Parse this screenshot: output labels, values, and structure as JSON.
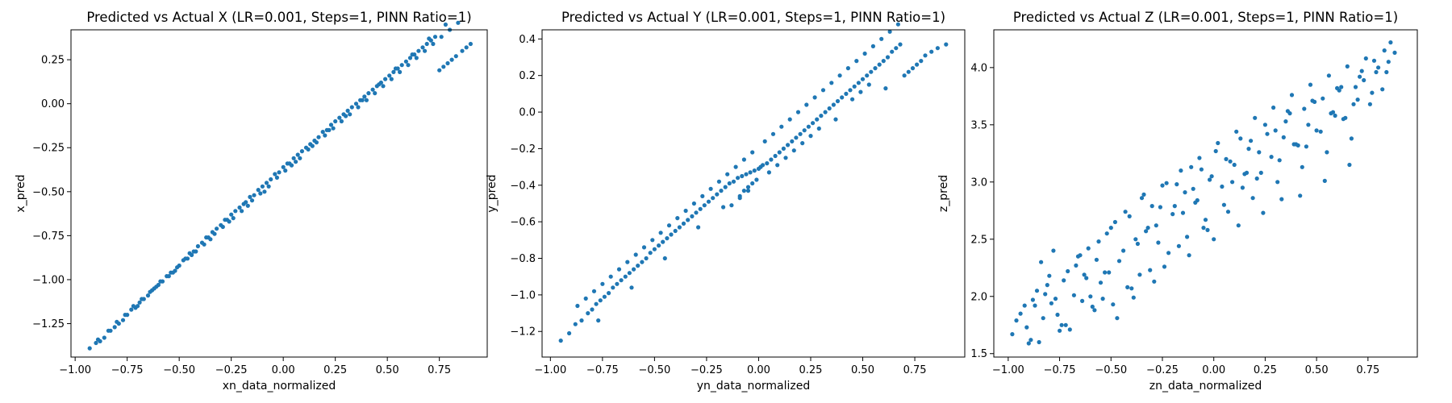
{
  "chart_data": [
    {
      "type": "scatter",
      "title": "Predicted vs Actual X (LR=0.001, Steps=1, PINN Ratio=1)",
      "xlabel": "xn_data_normalized",
      "ylabel": "x_pred",
      "xlim": [
        -1.02,
        0.98
      ],
      "ylim": [
        -1.44,
        0.42
      ],
      "xticks": [
        -1.0,
        -0.75,
        -0.5,
        -0.25,
        0.0,
        0.25,
        0.5,
        0.75
      ],
      "xtick_labels": [
        "−1.00",
        "−0.75",
        "−0.50",
        "−0.25",
        "0.00",
        "0.25",
        "0.50",
        "0.75"
      ],
      "yticks": [
        -1.25,
        -1.0,
        -0.75,
        -0.5,
        -0.25,
        0.0,
        0.25
      ],
      "ytick_labels": [
        "−1.25",
        "−1.00",
        "−0.75",
        "−0.50",
        "−0.25",
        "0.00",
        "0.25"
      ],
      "grid": false,
      "color": "#1f77b4",
      "x": [
        -0.93,
        -0.9,
        -0.88,
        -0.86,
        -0.83,
        -0.81,
        -0.79,
        -0.77,
        -0.75,
        -0.73,
        -0.71,
        -0.69,
        -0.67,
        -0.65,
        -0.63,
        -0.61,
        -0.6,
        -0.58,
        -0.56,
        -0.54,
        -0.52,
        -0.5,
        -0.48,
        -0.47,
        -0.45,
        -0.43,
        -0.41,
        -0.39,
        -0.37,
        -0.36,
        -0.34,
        -0.32,
        -0.3,
        -0.28,
        -0.27,
        -0.25,
        -0.23,
        -0.21,
        -0.19,
        -0.18,
        -0.16,
        -0.14,
        -0.12,
        -0.1,
        -0.08,
        -0.06,
        -0.04,
        -0.02,
        0.0,
        0.02,
        0.03,
        0.05,
        0.07,
        0.09,
        0.11,
        0.13,
        0.15,
        0.17,
        0.19,
        0.21,
        0.23,
        0.25,
        0.27,
        0.29,
        0.31,
        0.33,
        0.35,
        0.37,
        0.39,
        0.41,
        0.43,
        0.45,
        0.47,
        0.49,
        0.51,
        0.53,
        0.55,
        0.57,
        0.59,
        0.61,
        0.63,
        0.65,
        0.67,
        0.69,
        0.71,
        0.73,
        0.75,
        0.77,
        0.79,
        0.81,
        0.83,
        0.86,
        0.88,
        0.9,
        -0.89,
        -0.84,
        -0.8,
        -0.76,
        -0.72,
        -0.68,
        -0.64,
        -0.59,
        -0.55,
        -0.51,
        -0.46,
        -0.42,
        -0.38,
        -0.33,
        -0.29,
        -0.24,
        -0.2,
        -0.15,
        -0.11,
        -0.07,
        -0.03,
        0.01,
        0.04,
        0.08,
        0.12,
        0.16,
        0.2,
        0.24,
        0.28,
        0.32,
        0.36,
        0.4,
        0.44,
        0.48,
        0.52,
        0.56,
        0.6,
        0.64,
        0.68,
        0.72,
        0.76,
        0.8,
        0.84,
        -0.7,
        -0.62,
        -0.53,
        -0.44,
        -0.35,
        -0.26,
        -0.17,
        -0.09,
        0.06,
        0.14,
        0.22,
        0.3,
        0.38,
        0.46,
        0.54,
        0.62,
        0.7,
        0.78
      ],
      "y": [
        -1.39,
        -1.36,
        -1.35,
        -1.33,
        -1.29,
        -1.27,
        -1.25,
        -1.23,
        -1.2,
        -1.17,
        -1.16,
        -1.13,
        -1.11,
        -1.09,
        -1.06,
        -1.04,
        -1.03,
        -1.01,
        -0.98,
        -0.96,
        -0.95,
        -0.92,
        -0.89,
        -0.88,
        -0.85,
        -0.84,
        -0.81,
        -0.79,
        -0.76,
        -0.76,
        -0.73,
        -0.71,
        -0.69,
        -0.66,
        -0.66,
        -0.63,
        -0.61,
        -0.59,
        -0.57,
        -0.56,
        -0.53,
        -0.52,
        -0.49,
        -0.47,
        -0.45,
        -0.43,
        -0.4,
        -0.39,
        -0.36,
        -0.34,
        -0.34,
        -0.31,
        -0.29,
        -0.27,
        -0.25,
        -0.23,
        -0.21,
        -0.19,
        -0.16,
        -0.15,
        -0.12,
        -0.1,
        -0.08,
        -0.06,
        -0.04,
        -0.02,
        0.0,
        0.02,
        0.04,
        0.06,
        0.08,
        0.1,
        0.12,
        0.14,
        0.16,
        0.18,
        0.2,
        0.22,
        0.24,
        0.26,
        0.28,
        0.3,
        0.32,
        0.34,
        0.36,
        0.38,
        0.19,
        0.21,
        0.23,
        0.25,
        0.27,
        0.3,
        0.32,
        0.34,
        -1.34,
        -1.29,
        -1.24,
        -1.2,
        -1.15,
        -1.11,
        -1.07,
        -1.01,
        -0.98,
        -0.93,
        -0.88,
        -0.84,
        -0.8,
        -0.74,
        -0.7,
        -0.65,
        -0.61,
        -0.55,
        -0.51,
        -0.47,
        -0.42,
        -0.38,
        -0.35,
        -0.31,
        -0.26,
        -0.22,
        -0.18,
        -0.14,
        -0.1,
        -0.06,
        -0.02,
        0.02,
        0.06,
        0.1,
        0.14,
        0.18,
        0.22,
        0.26,
        0.3,
        0.34,
        0.38,
        0.42,
        0.46,
        -1.15,
        -1.05,
        -0.96,
        -0.86,
        -0.77,
        -0.67,
        -0.58,
        -0.5,
        -0.33,
        -0.24,
        -0.15,
        -0.07,
        0.02,
        0.11,
        0.2,
        0.28,
        0.37,
        0.45
      ]
    },
    {
      "type": "scatter",
      "title": "Predicted vs Actual Y (LR=0.001, Steps=1, PINN Ratio=1)",
      "xlabel": "yn_data_normalized",
      "ylabel": "y_pred",
      "xlim": [
        -1.04,
        0.99
      ],
      "ylim": [
        -1.34,
        0.45
      ],
      "xticks": [
        -1.0,
        -0.75,
        -0.5,
        -0.25,
        0.0,
        0.25,
        0.5,
        0.75
      ],
      "xtick_labels": [
        "−1.00",
        "−0.75",
        "−0.50",
        "−0.25",
        "0.00",
        "0.25",
        "0.50",
        "0.75"
      ],
      "yticks": [
        -1.2,
        -1.0,
        -0.8,
        -0.6,
        -0.4,
        -0.2,
        0.0,
        0.2,
        0.4
      ],
      "ytick_labels": [
        "−1.2",
        "−1.0",
        "−0.8",
        "−0.6",
        "−0.4",
        "−0.2",
        "0.0",
        "0.2",
        "0.4"
      ],
      "grid": false,
      "color": "#1f77b4",
      "x": [
        -0.95,
        -0.91,
        -0.88,
        -0.85,
        -0.82,
        -0.8,
        -0.78,
        -0.76,
        -0.74,
        -0.72,
        -0.7,
        -0.68,
        -0.66,
        -0.64,
        -0.62,
        -0.6,
        -0.58,
        -0.56,
        -0.54,
        -0.52,
        -0.5,
        -0.48,
        -0.46,
        -0.44,
        -0.42,
        -0.4,
        -0.38,
        -0.36,
        -0.34,
        -0.32,
        -0.3,
        -0.28,
        -0.26,
        -0.24,
        -0.22,
        -0.2,
        -0.18,
        -0.16,
        -0.14,
        -0.12,
        -0.1,
        -0.09,
        -0.08,
        -0.07,
        -0.06,
        -0.05,
        -0.04,
        -0.03,
        -0.02,
        -0.01,
        0.0,
        0.01,
        0.02,
        0.04,
        0.06,
        0.08,
        0.1,
        0.12,
        0.14,
        0.16,
        0.18,
        0.2,
        0.22,
        0.24,
        0.26,
        0.28,
        0.3,
        0.32,
        0.34,
        0.36,
        0.38,
        0.4,
        0.42,
        0.44,
        0.46,
        0.48,
        0.5,
        0.52,
        0.54,
        0.56,
        0.58,
        0.6,
        0.62,
        0.64,
        0.66,
        0.68,
        0.7,
        0.72,
        0.74,
        0.76,
        0.78,
        0.8,
        0.83,
        0.86,
        0.9,
        -0.87,
        -0.83,
        -0.79,
        -0.75,
        -0.71,
        -0.67,
        -0.63,
        -0.59,
        -0.55,
        -0.51,
        -0.47,
        -0.43,
        -0.39,
        -0.35,
        -0.31,
        -0.27,
        -0.23,
        -0.19,
        -0.15,
        -0.11,
        -0.07,
        -0.03,
        0.03,
        0.07,
        0.11,
        0.15,
        0.19,
        0.23,
        0.27,
        0.31,
        0.35,
        0.39,
        0.43,
        0.47,
        0.51,
        0.55,
        0.59,
        0.63,
        0.67,
        -0.13,
        -0.09,
        -0.05,
        0.05,
        0.09,
        0.13,
        0.17,
        0.21,
        0.25,
        0.29,
        0.45,
        0.49,
        0.53,
        -0.77,
        -0.61,
        -0.45,
        -0.29,
        -0.17,
        0.37,
        0.61
      ],
      "y": [
        -1.25,
        -1.21,
        -1.16,
        -1.14,
        -1.1,
        -1.08,
        -1.05,
        -1.03,
        -1.01,
        -0.99,
        -0.96,
        -0.94,
        -0.92,
        -0.9,
        -0.88,
        -0.86,
        -0.84,
        -0.82,
        -0.8,
        -0.77,
        -0.75,
        -0.73,
        -0.71,
        -0.69,
        -0.67,
        -0.65,
        -0.63,
        -0.61,
        -0.59,
        -0.57,
        -0.55,
        -0.53,
        -0.51,
        -0.49,
        -0.47,
        -0.45,
        -0.43,
        -0.41,
        -0.39,
        -0.38,
        -0.36,
        -0.46,
        -0.35,
        -0.43,
        -0.34,
        -0.41,
        -0.33,
        -0.39,
        -0.32,
        -0.37,
        -0.31,
        -0.3,
        -0.29,
        -0.28,
        -0.26,
        -0.24,
        -0.22,
        -0.2,
        -0.18,
        -0.16,
        -0.14,
        -0.12,
        -0.1,
        -0.08,
        -0.06,
        -0.04,
        -0.02,
        0.0,
        0.02,
        0.04,
        0.06,
        0.08,
        0.1,
        0.12,
        0.14,
        0.16,
        0.18,
        0.2,
        0.22,
        0.24,
        0.26,
        0.28,
        0.3,
        0.33,
        0.35,
        0.37,
        0.2,
        0.22,
        0.24,
        0.26,
        0.28,
        0.31,
        0.33,
        0.35,
        0.37,
        -1.06,
        -1.02,
        -0.98,
        -0.94,
        -0.9,
        -0.86,
        -0.82,
        -0.78,
        -0.74,
        -0.7,
        -0.66,
        -0.62,
        -0.58,
        -0.54,
        -0.5,
        -0.46,
        -0.42,
        -0.38,
        -0.34,
        -0.3,
        -0.26,
        -0.22,
        -0.16,
        -0.12,
        -0.08,
        -0.04,
        0.0,
        0.04,
        0.08,
        0.12,
        0.16,
        0.2,
        0.24,
        0.28,
        0.32,
        0.36,
        0.4,
        0.44,
        0.48,
        -0.51,
        -0.47,
        -0.43,
        -0.33,
        -0.29,
        -0.25,
        -0.21,
        -0.17,
        -0.13,
        -0.09,
        0.07,
        0.11,
        0.15,
        -1.14,
        -0.96,
        -0.8,
        -0.63,
        -0.52,
        -0.04,
        0.13
      ]
    },
    {
      "type": "scatter",
      "title": "Predicted vs Actual Z (LR=0.001, Steps=1, PINN Ratio=1)",
      "xlabel": "zn_data_normalized",
      "ylabel": "z_pred",
      "xlim": [
        -1.07,
        0.99
      ],
      "ylim": [
        1.47,
        4.33
      ],
      "xticks": [
        -1.0,
        -0.75,
        -0.5,
        -0.25,
        0.0,
        0.25,
        0.5,
        0.75
      ],
      "xtick_labels": [
        "−1.00",
        "−0.75",
        "−0.50",
        "−0.25",
        "0.00",
        "0.25",
        "0.50",
        "0.75"
      ],
      "yticks": [
        1.5,
        2.0,
        2.5,
        3.0,
        3.5,
        4.0
      ],
      "ytick_labels": [
        "1.5",
        "2.0",
        "2.5",
        "3.0",
        "3.5",
        "4.0"
      ],
      "grid": false,
      "color": "#1f77b4",
      "x": [
        -0.98,
        -0.94,
        -0.91,
        -0.88,
        -0.85,
        -0.82,
        -0.79,
        -0.76,
        -0.73,
        -0.7,
        -0.67,
        -0.64,
        -0.61,
        -0.58,
        -0.55,
        -0.52,
        -0.49,
        -0.46,
        -0.43,
        -0.4,
        -0.37,
        -0.34,
        -0.31,
        -0.28,
        -0.25,
        -0.22,
        -0.19,
        -0.16,
        -0.13,
        -0.1,
        -0.07,
        -0.04,
        -0.01,
        0.02,
        0.05,
        0.08,
        0.11,
        0.14,
        0.17,
        0.2,
        0.23,
        0.26,
        0.29,
        0.32,
        0.35,
        0.38,
        0.41,
        0.44,
        0.47,
        0.5,
        0.53,
        0.56,
        0.59,
        0.62,
        0.65,
        0.68,
        0.71,
        0.74,
        0.77,
        0.8,
        0.83,
        0.86,
        -0.96,
        -0.92,
        -0.89,
        -0.86,
        -0.83,
        -0.8,
        -0.77,
        -0.74,
        -0.71,
        -0.68,
        -0.65,
        -0.62,
        -0.59,
        -0.56,
        -0.53,
        -0.5,
        -0.47,
        -0.44,
        -0.41,
        -0.38,
        -0.35,
        -0.32,
        -0.29,
        -0.26,
        -0.23,
        -0.2,
        -0.17,
        -0.14,
        -0.11,
        -0.08,
        -0.05,
        -0.02,
        0.01,
        0.04,
        0.07,
        0.1,
        0.13,
        0.16,
        0.19,
        0.22,
        0.25,
        0.28,
        0.31,
        0.34,
        0.37,
        0.4,
        0.43,
        0.46,
        0.49,
        0.52,
        0.55,
        0.58,
        0.61,
        0.64,
        0.67,
        0.7,
        0.73,
        0.76,
        0.79,
        0.82,
        0.85,
        0.88,
        -0.9,
        -0.84,
        -0.78,
        -0.72,
        -0.66,
        -0.6,
        -0.54,
        -0.48,
        -0.42,
        -0.36,
        -0.3,
        -0.24,
        -0.18,
        -0.12,
        -0.06,
        0.0,
        0.06,
        0.12,
        0.18,
        0.24,
        0.3,
        0.36,
        0.42,
        0.48,
        0.54,
        0.6,
        0.66,
        0.72,
        0.78,
        0.84,
        -0.87,
        -0.75,
        -0.63,
        -0.51,
        -0.39,
        -0.27,
        -0.15,
        -0.03,
        0.09,
        0.21,
        0.33,
        0.45,
        0.57,
        0.69,
        -0.81,
        -0.57,
        -0.33,
        -0.09,
        0.15,
        0.39,
        0.63
      ],
      "y": [
        1.67,
        1.85,
        1.73,
        1.97,
        1.6,
        2.02,
        1.94,
        1.84,
        2.14,
        1.71,
        2.27,
        1.96,
        2.42,
        1.88,
        2.12,
        2.55,
        1.93,
        2.31,
        2.74,
        2.07,
        2.46,
        2.89,
        2.23,
        2.62,
        2.97,
        2.38,
        2.79,
        3.1,
        2.52,
        2.94,
        3.21,
        2.67,
        3.05,
        3.34,
        2.8,
        3.18,
        3.44,
        2.95,
        3.29,
        3.56,
        3.08,
        3.42,
        3.65,
        3.19,
        3.53,
        3.76,
        3.32,
        3.64,
        3.85,
        3.45,
        3.73,
        3.93,
        3.58,
        3.83,
        4.01,
        3.68,
        3.92,
        4.08,
        3.78,
        4.0,
        4.15,
        4.22,
        1.79,
        1.92,
        1.62,
        2.05,
        1.81,
        2.18,
        1.98,
        1.75,
        2.22,
        2.01,
        2.36,
        2.16,
        1.91,
        2.48,
        2.21,
        2.6,
        1.81,
        2.4,
        2.7,
        2.5,
        2.86,
        2.6,
        2.13,
        2.78,
        2.99,
        2.72,
        2.44,
        2.91,
        3.13,
        2.84,
        2.6,
        3.02,
        3.27,
        2.96,
        2.74,
        3.15,
        3.38,
        3.08,
        2.86,
        3.26,
        3.5,
        3.22,
        3.0,
        3.39,
        3.6,
        3.33,
        3.13,
        3.5,
        3.7,
        3.44,
        3.26,
        3.61,
        3.8,
        3.56,
        3.38,
        3.72,
        3.89,
        3.68,
        3.96,
        3.81,
        4.05,
        4.13,
        1.59,
        2.3,
        2.4,
        1.75,
        2.35,
        2.0,
        1.98,
        2.65,
        2.08,
        2.19,
        2.79,
        2.26,
        2.98,
        2.36,
        3.11,
        2.5,
        3.2,
        2.62,
        3.36,
        2.73,
        3.45,
        3.62,
        2.88,
        3.71,
        3.01,
        3.82,
        3.15,
        3.97,
        4.06,
        3.96,
        1.92,
        1.7,
        2.19,
        2.21,
        1.99,
        2.47,
        2.73,
        2.58,
        3.0,
        3.03,
        2.85,
        3.31,
        3.6,
        3.83,
        2.1,
        2.32,
        2.57,
        2.82,
        3.07,
        3.33,
        3.55
      ]
    }
  ]
}
